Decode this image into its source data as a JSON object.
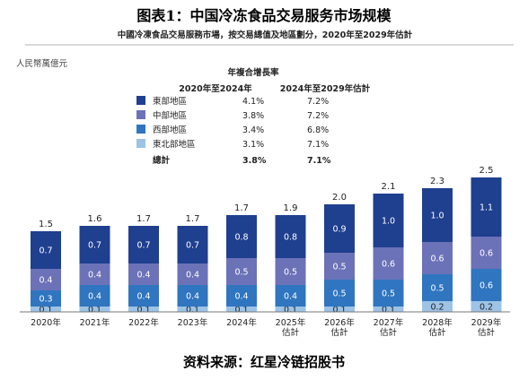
{
  "figure_title": "图表1：中国冷冻食品交易服务市场规模",
  "source": "资料来源：红星冷链招股书",
  "chart_data": {
    "type": "bar",
    "stacked": true,
    "title": "中國冷凍食品交易服務市場，按交易總值及地區劃分，2020年至2029年估計",
    "ylabel": "人民幣萬億元",
    "categories": [
      "2020年",
      "2021年",
      "2022年",
      "2023年",
      "2024年",
      "2025年\n估計",
      "2026年\n估計",
      "2027年\n估計",
      "2028年\n估計",
      "2029年\n估計"
    ],
    "totals": [
      "1.5",
      "1.6",
      "1.7",
      "1.7",
      "1.7",
      "1.9",
      "2.0",
      "2.1",
      "2.3",
      "2.5"
    ],
    "series": [
      {
        "name": "東北部地區",
        "color": "#9dc3e6",
        "values": [
          0.1,
          0.1,
          0.1,
          0.1,
          0.1,
          0.1,
          0.1,
          0.1,
          0.2,
          0.2
        ]
      },
      {
        "name": "西部地區",
        "color": "#2f75c0",
        "values": [
          0.3,
          0.4,
          0.4,
          0.4,
          0.4,
          0.4,
          0.5,
          0.5,
          0.5,
          0.6
        ]
      },
      {
        "name": "中部地區",
        "color": "#6c72b8",
        "values": [
          0.4,
          0.4,
          0.4,
          0.4,
          0.5,
          0.5,
          0.5,
          0.6,
          0.6,
          0.6
        ]
      },
      {
        "name": "東部地區",
        "color": "#1f3f8f",
        "values": [
          0.7,
          0.7,
          0.7,
          0.7,
          0.8,
          0.8,
          0.9,
          1.0,
          1.0,
          1.1
        ]
      }
    ],
    "cagr_table": {
      "header": "年複合增長率",
      "col1": "2020年至2024年",
      "col2": "2024年至2029年估計",
      "rows": [
        {
          "name": "東部地區",
          "color": "#1f3f8f",
          "c1": "4.1%",
          "c2": "7.2%"
        },
        {
          "name": "中部地區",
          "color": "#6c72b8",
          "c1": "3.8%",
          "c2": "7.2%"
        },
        {
          "name": "西部地區",
          "color": "#2f75c0",
          "c1": "3.4%",
          "c2": "6.8%"
        },
        {
          "name": "東北部地區",
          "color": "#9dc3e6",
          "c1": "3.1%",
          "c2": "7.1%"
        }
      ],
      "total": {
        "name": "總計",
        "c1": "3.8%",
        "c2": "7.1%"
      }
    }
  }
}
